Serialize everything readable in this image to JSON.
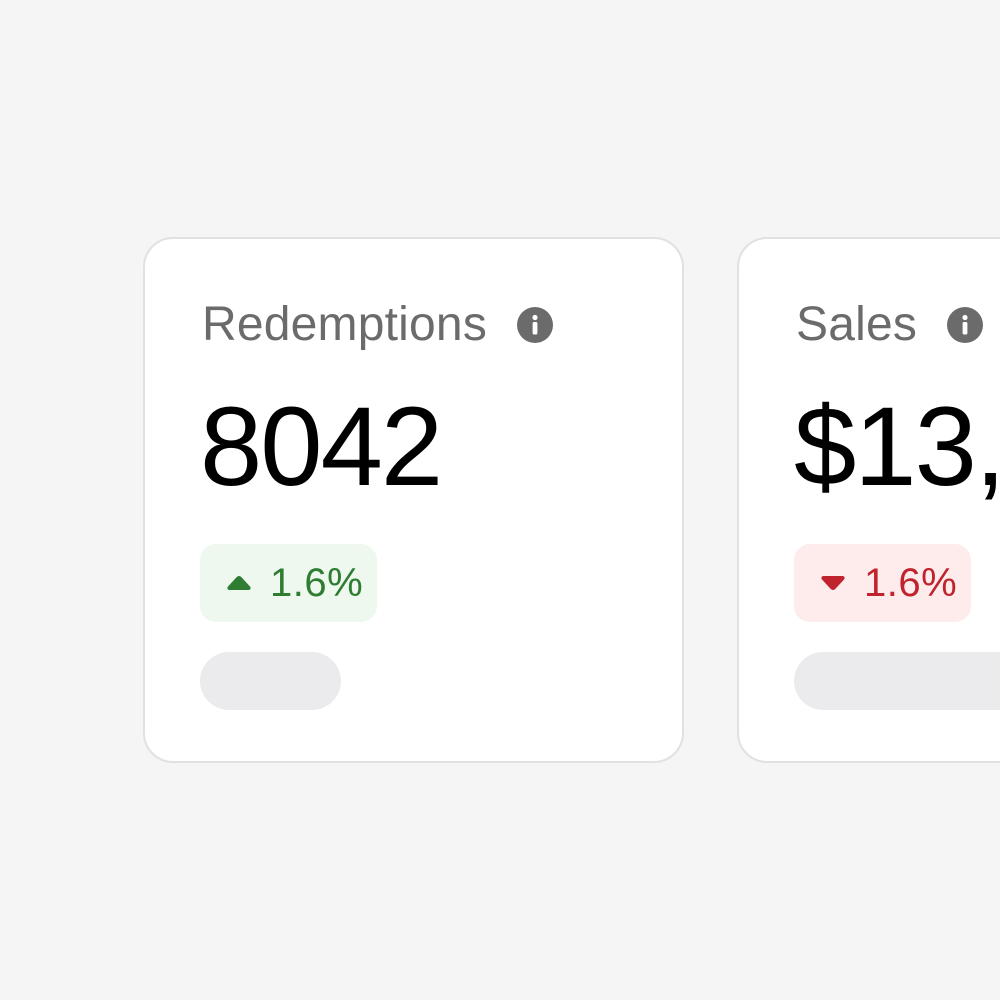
{
  "cards": [
    {
      "title": "Redemptions",
      "value": "8042",
      "delta": {
        "direction": "up",
        "text": "1.6%",
        "color": "#2e7d32",
        "background": "#eef8ef"
      },
      "info_icon": "info-icon"
    },
    {
      "title": "Sales",
      "value": "$13,",
      "delta": {
        "direction": "down",
        "text": "1.6%",
        "color": "#c0232d",
        "background": "#fdeceb"
      },
      "info_icon": "info-icon"
    }
  ],
  "colors": {
    "page_background": "#f5f5f5",
    "card_background": "#ffffff",
    "card_border": "#e1e1e1",
    "title_text": "#6b6b6b",
    "value_text": "#000000",
    "placeholder": "#ebebed"
  }
}
